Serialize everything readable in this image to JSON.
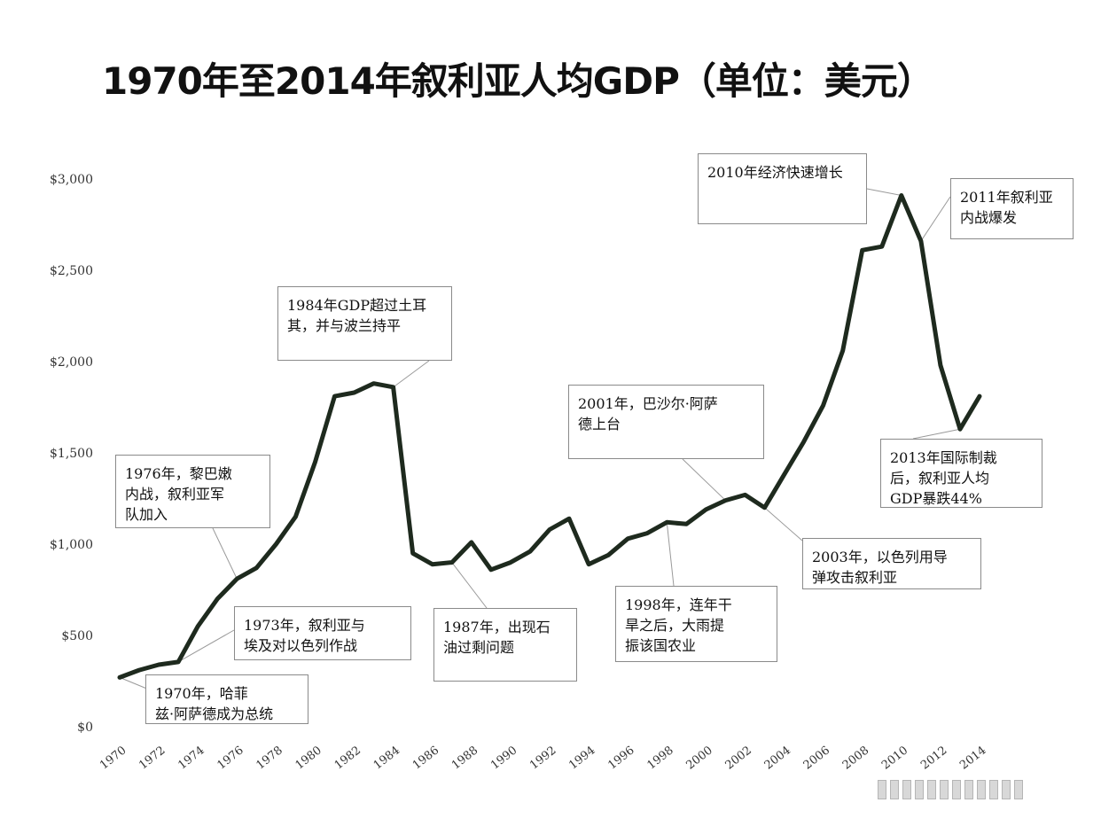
{
  "chart_data": {
    "type": "line",
    "title": "1970年至2014年叙利亚人均GDP（单位：美元）",
    "xlabel": "",
    "ylabel": "",
    "ylim": [
      0,
      3000
    ],
    "xlim": [
      1970,
      2014
    ],
    "y_ticks": [
      "$0",
      "$500",
      "$1,000",
      "$1,500",
      "$2,000",
      "$2,500",
      "$3,000"
    ],
    "x_ticks": [
      "1970",
      "1972",
      "1974",
      "1976",
      "1978",
      "1980",
      "1982",
      "1984",
      "1986",
      "1988",
      "1990",
      "1992",
      "1994",
      "1996",
      "1998",
      "2000",
      "2002",
      "2004",
      "2006",
      "2008",
      "2010",
      "2012",
      "2014"
    ],
    "grid": false,
    "legend": "none",
    "line_color": "#1e2a1e",
    "series": [
      {
        "x": [
          1970,
          1971,
          1972,
          1973,
          1974,
          1975,
          1976,
          1977,
          1978,
          1979,
          1980,
          1981,
          1982,
          1983,
          1984,
          1985,
          1986,
          1987,
          1988,
          1989,
          1990,
          1991,
          1992,
          1993,
          1994,
          1995,
          1996,
          1997,
          1998,
          1999,
          2000,
          2001,
          2002,
          2003,
          2004,
          2005,
          2006,
          2007,
          2008,
          2009,
          2010,
          2011,
          2012,
          2013,
          2014
        ],
        "values": [
          270,
          310,
          340,
          355,
          550,
          700,
          810,
          870,
          1000,
          1150,
          1450,
          1810,
          1830,
          1880,
          1860,
          950,
          890,
          900,
          1010,
          860,
          900,
          960,
          1080,
          1140,
          890,
          940,
          1030,
          1060,
          1120,
          1110,
          1190,
          1240,
          1270,
          1200,
          1380,
          1560,
          1760,
          2060,
          2610,
          2630,
          2910,
          2660,
          1980,
          1630,
          1810
        ]
      }
    ],
    "annotations": [
      {
        "id": "ann1970",
        "lines": [
          "1970年，哈菲",
          "兹·阿萨德成为总统"
        ],
        "x": 1970,
        "y": 270
      },
      {
        "id": "ann1973",
        "lines": [
          "1973年，叙利亚与",
          "埃及对以色列作战"
        ],
        "x": 1973,
        "y": 355
      },
      {
        "id": "ann1976",
        "lines": [
          "1976年，黎巴嫩",
          "内战，叙利亚军",
          "队加入"
        ],
        "x": 1976,
        "y": 810
      },
      {
        "id": "ann1984",
        "lines": [
          "1984年GDP超过土耳",
          "其，并与波兰持平"
        ],
        "x": 1984,
        "y": 1860
      },
      {
        "id": "ann1987",
        "lines": [
          "1987年，出现石",
          "油过剩问题"
        ],
        "x": 1987,
        "y": 900
      },
      {
        "id": "ann1998",
        "lines": [
          "1998年，连年干",
          "旱之后，大雨提",
          "振该国农业"
        ],
        "x": 1998,
        "y": 1120
      },
      {
        "id": "ann2001",
        "lines": [
          "2001年，巴沙尔·阿萨",
          "德上台"
        ],
        "x": 2001,
        "y": 1240
      },
      {
        "id": "ann2003",
        "lines": [
          "2003年，以色列用导",
          "弹攻击叙利亚"
        ],
        "x": 2003,
        "y": 1200
      },
      {
        "id": "ann2010",
        "lines": [
          "2010年经济快速增长"
        ],
        "x": 2010,
        "y": 2910
      },
      {
        "id": "ann2011",
        "lines": [
          "2011年叙利亚",
          "内战爆发"
        ],
        "x": 2011,
        "y": 2660
      },
      {
        "id": "ann2013",
        "lines": [
          "2013年国际制裁",
          "后，叙利亚人均",
          "GDP暴跌44%"
        ],
        "x": 2013,
        "y": 1630
      }
    ]
  },
  "watermark": {
    "icon": "image-placeholder-icon"
  }
}
